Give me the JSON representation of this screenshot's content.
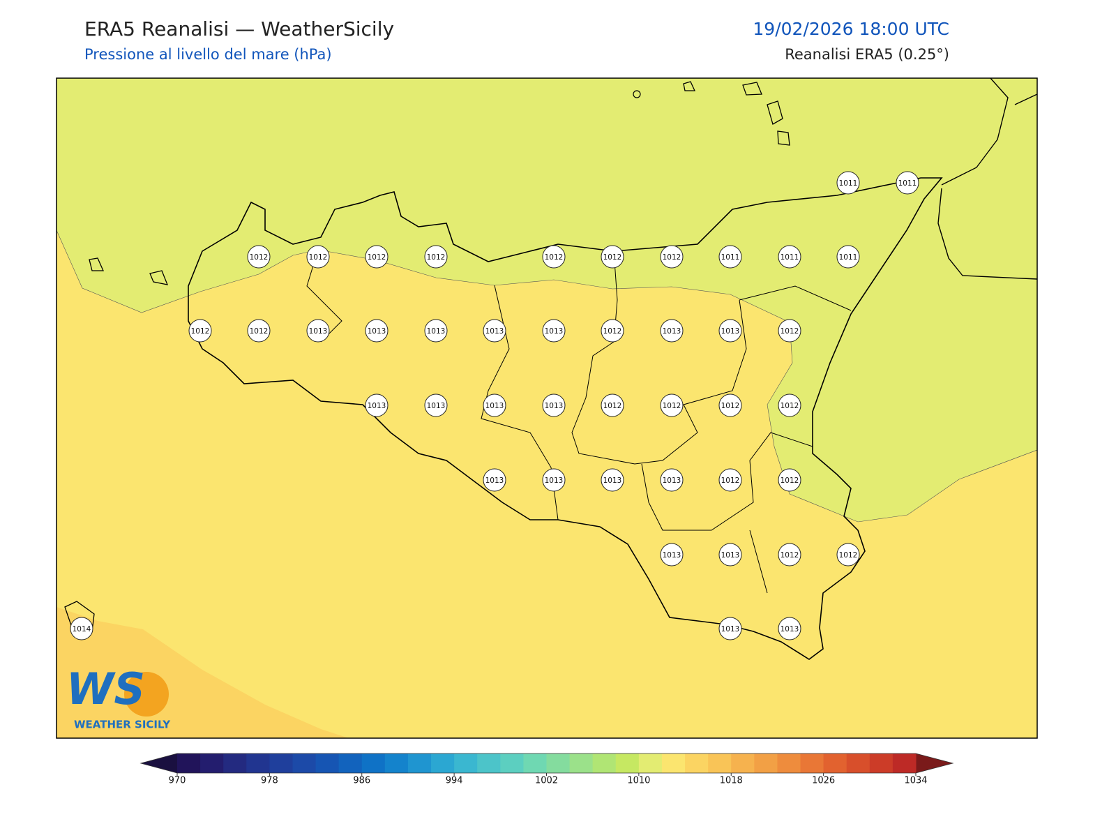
{
  "header": {
    "title": "ERA5 Reanalisi — WeatherSicily",
    "subtitle": "Pressione al livello del mare (hPa)",
    "date": "19/02/2026 18:00 UTC",
    "source": "Reanalisi ERA5 (0.25°)"
  },
  "map": {
    "stations": [
      1011,
      1011,
      1012,
      1012,
      1012,
      1012,
      1012,
      1012,
      1012,
      1011,
      1011,
      1011,
      1012,
      1012,
      1013,
      1013,
      1013,
      1013,
      1013,
      1012,
      1013,
      1013,
      1012,
      1013,
      1013,
      1013,
      1013,
      1012,
      1012,
      1012,
      1012,
      1013,
      1013,
      1013,
      1013,
      1012,
      1012,
      1013,
      1013,
      1012,
      1012,
      1014,
      1013,
      1013
    ]
  },
  "logo": {
    "text": "WS",
    "tagline": "WEATHER SICILY"
  },
  "colorbar": {
    "range": [
      970,
      1034
    ],
    "ticks": [
      970,
      978,
      986,
      994,
      1002,
      1010,
      1018,
      1026,
      1034
    ],
    "colors": [
      "#21145a",
      "#231d6e",
      "#232a80",
      "#213590",
      "#1f3f9c",
      "#1c4aa8",
      "#1655b3",
      "#1263bd",
      "#0f72c6",
      "#1483cc",
      "#1f95d0",
      "#2ba7d2",
      "#3ab7d0",
      "#4cc4c9",
      "#5ccfc0",
      "#6fd8b2",
      "#84dc9e",
      "#9be18a",
      "#b0e574",
      "#c6e862",
      "#e3ec72",
      "#fbe56f",
      "#fbd462",
      "#f9c457",
      "#f6b24e",
      "#f2a045",
      "#ee8c3d",
      "#e97736",
      "#e2622f",
      "#d84f2b",
      "#cc3c28",
      "#bd2a26"
    ],
    "extend_colors": [
      "#1a1040",
      "#7a1a1a"
    ]
  }
}
